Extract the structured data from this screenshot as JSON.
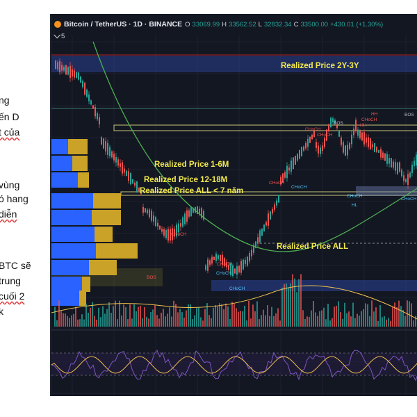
{
  "side_text": [
    {
      "text": "ng",
      "squiggle": false
    },
    {
      "text": "ến D",
      "squiggle": false
    },
    {
      "text": "t của",
      "squiggle": true
    },
    {
      "text": "vùng",
      "squiggle": false
    },
    {
      "text": "ó hang",
      "squiggle": false
    },
    {
      "text": "diễn",
      "squiggle": true
    },
    {
      "text": "BTC sẽ",
      "squiggle": false
    },
    {
      "text": "trung",
      "squiggle": false
    },
    {
      "text": "cuối 2",
      "squiggle": true
    },
    {
      "text": "k",
      "squiggle": false
    }
  ],
  "header": {
    "symbol": "Bitcoin / TetherUS · 1D · BINANCE",
    "o_label": "O",
    "o_value": "33069.99",
    "h_label": "H",
    "h_value": "33562.52",
    "l_label": "L",
    "l_value": "32832.34",
    "c_label": "C",
    "c_value": "33500.00",
    "change": "+430.01 (+1.30%)",
    "indicator_count": "5"
  },
  "annotations": {
    "rp_2y3y": "Realized Price 2Y-3Y",
    "rp_1_6m": "Realized Price 1-6M",
    "rp_12_18m": "Realized Price 12-18M",
    "rp_all_lt7": "Realized Price ALL < 7 năm",
    "rp_all": "Realized Price ALL"
  },
  "markers": [
    {
      "text": "HH",
      "tone": "red"
    },
    {
      "text": "BOS",
      "tone": "grey"
    },
    {
      "text": "CHoCH",
      "tone": "red"
    },
    {
      "text": "HH",
      "tone": "red"
    },
    {
      "text": "BOS",
      "tone": "grey"
    },
    {
      "text": "CHoCH",
      "tone": "red"
    },
    {
      "text": "CHoCH",
      "tone": "red"
    },
    {
      "text": "CHoCH",
      "tone": "red"
    },
    {
      "text": "CHoCH",
      "tone": "red"
    },
    {
      "text": "BOS",
      "tone": "red"
    },
    {
      "text": "CHoCH",
      "tone": "red"
    },
    {
      "text": "CHoCH",
      "tone": "teal"
    },
    {
      "text": "HL",
      "tone": "teal"
    },
    {
      "text": "CHoCH",
      "tone": "teal"
    },
    {
      "text": "CHoCH",
      "tone": "teal"
    },
    {
      "text": "CHoCH",
      "tone": "teal"
    },
    {
      "text": "CHoCH",
      "tone": "teal"
    }
  ],
  "colors": {
    "background": "#131722",
    "up_candle": "#26a69a",
    "down_candle": "#ef5350",
    "ma_line": "#4caf50",
    "annotation_text": "#f2e94e",
    "volume_profile_blue": "#2962ff",
    "volume_profile_gold": "#c9a227",
    "band_blue": "#2a3f8f",
    "oscillator_line": "#7e57c2",
    "oscillator_signal": "#f2c14e"
  },
  "chart_data": {
    "type": "candlestick",
    "symbol": "Bitcoin / TetherUS",
    "interval": "1D",
    "exchange": "BINANCE",
    "last_bar": {
      "open": 33069.99,
      "high": 33562.52,
      "low": 32832.34,
      "close": 33500.0,
      "change": 430.01,
      "change_pct": 1.3
    },
    "grid": true,
    "subpanels": [
      "volume",
      "oscillator"
    ],
    "price_levels": [
      "Realized Price 2Y-3Y",
      "Realized Price 1-6M",
      "Realized Price 12-18M",
      "Realized Price ALL < 7 năm",
      "Realized Price ALL"
    ]
  }
}
